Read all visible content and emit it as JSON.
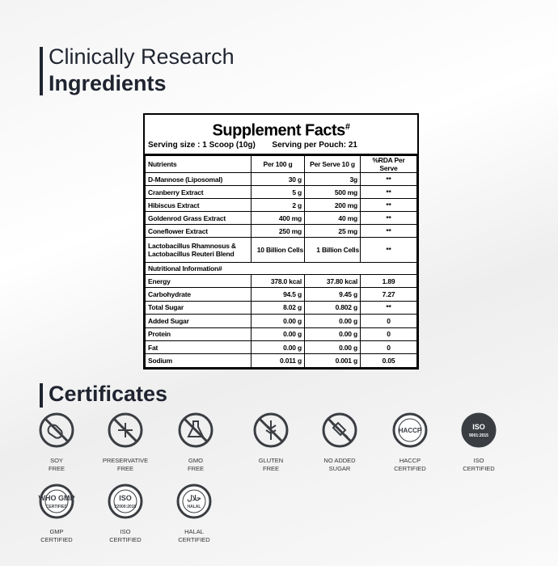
{
  "heading": {
    "line1": "Clinically Research",
    "line2": "Ingredients"
  },
  "supplement_facts": {
    "title": "Supplement Facts",
    "title_mark": "#",
    "serving_size": "Serving size : 1 Scoop (10g)",
    "servings": "Serving per Pouch: 21",
    "header": [
      "Nutrients",
      "Per 100 g",
      "Per Serve 10 g",
      "%RDA Per Serve"
    ],
    "rows": [
      [
        "D-Mannose (Liposomal)",
        "30 g",
        "3g",
        "**"
      ],
      [
        "Cranberry Extract",
        "5 g",
        "500 mg",
        "**"
      ],
      [
        "Hibiscus Extract",
        "2 g",
        "200 mg",
        "**"
      ],
      [
        "Goldenrod Grass Extract",
        "400 mg",
        "40 mg",
        "**"
      ],
      [
        "Coneflower Extract",
        "250 mg",
        "25 mg",
        "**"
      ],
      [
        "Lactobacillus Rhamnosus & Lactobacillus Reuteri Blend",
        "10 Billion Cells",
        "1 Billion Cells",
        "**"
      ]
    ],
    "section": "Nutritional Information#",
    "nutrition_rows": [
      [
        "Energy",
        "378.0 kcal",
        "37.80 kcal",
        "1.89"
      ],
      [
        "Carbohydrate",
        "94.5 g",
        "9.45 g",
        "7.27"
      ],
      [
        "Total Sugar",
        "8.02 g",
        "0.802 g",
        "**"
      ],
      [
        "Added Sugar",
        "0.00 g",
        "0.00 g",
        "0"
      ],
      [
        "Protein",
        "0.00 g",
        "0.00 g",
        "0"
      ],
      [
        "Fat",
        "0.00 g",
        "0.00 g",
        "0"
      ],
      [
        "Sodium",
        "0.011 g",
        "0.001 g",
        "0.05"
      ]
    ]
  },
  "certificates": {
    "title": "Certificates",
    "items": [
      {
        "label": [
          "SOY",
          "FREE"
        ]
      },
      {
        "label": [
          "PRESERVATIVE",
          "FREE"
        ]
      },
      {
        "label": [
          "GMO",
          "FREE"
        ]
      },
      {
        "label": [
          "GLUTEN",
          "FREE"
        ]
      },
      {
        "label": [
          "NO ADDED",
          "SUGAR"
        ]
      },
      {
        "label": [
          "HACCP",
          "CERTIFIED"
        ],
        "badge": [
          "HACCP"
        ]
      },
      {
        "label": [
          "ISO",
          "CERTIFIED"
        ],
        "badge": [
          "ISO",
          "9001:2015"
        ]
      },
      {
        "label": [
          "GMP",
          "CERTIFIED"
        ],
        "badge": [
          "WHO GMP",
          "CERTIFIED"
        ]
      },
      {
        "label": [
          "ISO",
          "CERTIFIED"
        ],
        "badge": [
          "ISO",
          "22000:2018"
        ]
      },
      {
        "label": [
          "HALAL",
          "CERTIFIED"
        ],
        "badge": [
          "حلال",
          "HALAL"
        ]
      }
    ]
  }
}
